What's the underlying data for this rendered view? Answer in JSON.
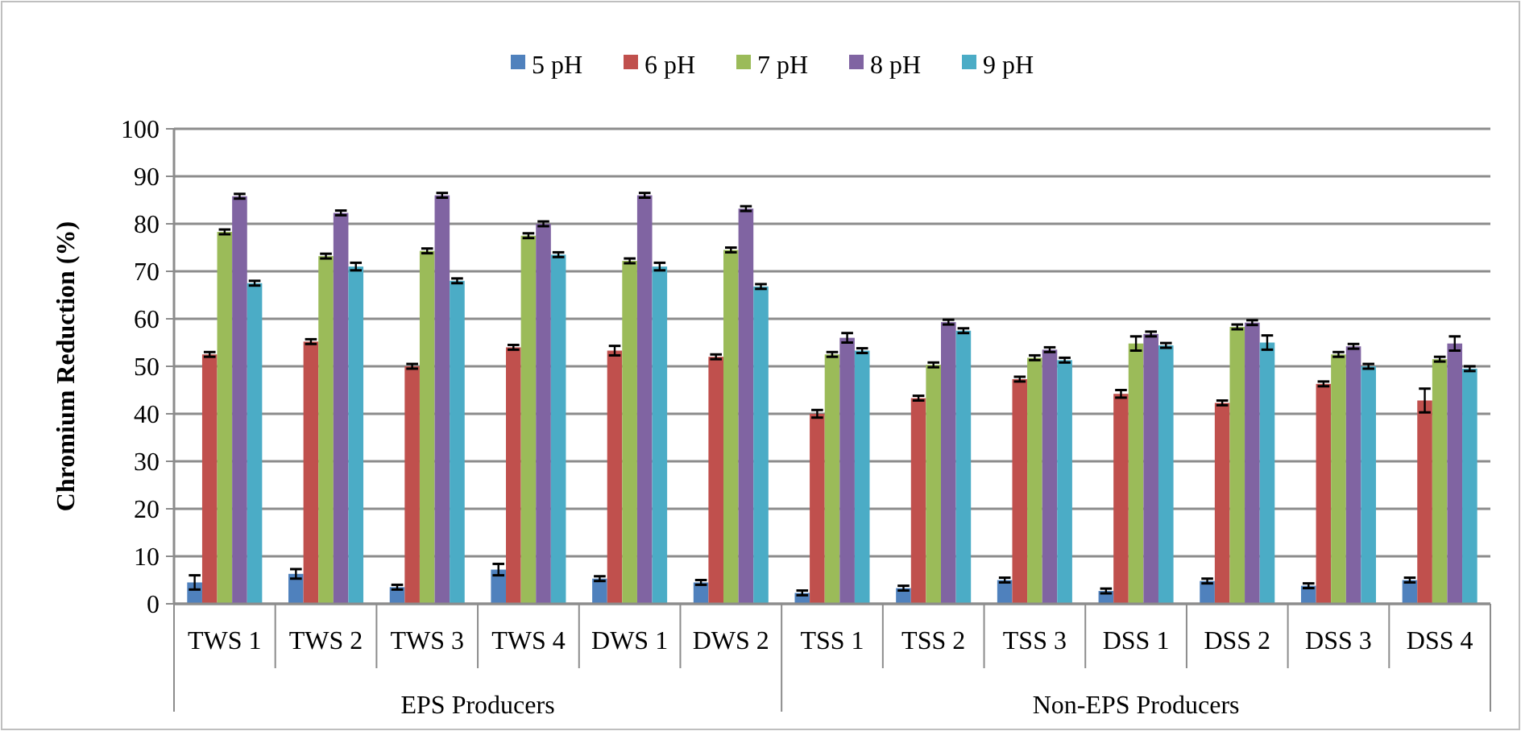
{
  "chart_data": {
    "type": "bar",
    "ylabel": "Chromium  Reduction (%)",
    "categories": [
      "TWS 1",
      "TWS 2",
      "TWS 3",
      "TWS 4",
      "DWS 1",
      "DWS 2",
      "TSS 1",
      "TSS 2",
      "TSS 3",
      "DSS 1",
      "DSS 2",
      "DSS 3",
      "DSS 4"
    ],
    "series": [
      {
        "name": "5 pH",
        "color": "#4f81bd",
        "values": [
          4.5,
          6.3,
          3.5,
          7.2,
          5.3,
          4.5,
          2.3,
          3.3,
          5,
          2.7,
          4.8,
          3.8,
          5
        ],
        "errors": [
          1.5,
          1,
          0.5,
          1.2,
          0.5,
          0.5,
          0.5,
          0.5,
          0.5,
          0.5,
          0.5,
          0.5,
          0.5
        ]
      },
      {
        "name": "6 pH",
        "color": "#c0504d",
        "values": [
          52.5,
          55.2,
          50,
          54,
          53.3,
          52,
          40,
          43.3,
          47.3,
          44.2,
          42.3,
          46.3,
          42.8
        ],
        "errors": [
          0.5,
          0.5,
          0.5,
          0.5,
          1,
          0.5,
          0.8,
          0.5,
          0.5,
          0.8,
          0.5,
          0.5,
          2.5
        ]
      },
      {
        "name": "7 pH",
        "color": "#9bbb59",
        "values": [
          78.3,
          73.2,
          74.3,
          77.5,
          72.2,
          74.5,
          52.5,
          50.3,
          51.8,
          54.8,
          58.3,
          52.5,
          51.5
        ],
        "errors": [
          0.5,
          0.5,
          0.5,
          0.5,
          0.5,
          0.5,
          0.5,
          0.5,
          0.5,
          1.5,
          0.5,
          0.5,
          0.5
        ]
      },
      {
        "name": "8 pH",
        "color": "#8064a2",
        "values": [
          85.8,
          82.3,
          86,
          80,
          86,
          83.2,
          56,
          59.3,
          53.5,
          56.8,
          59.2,
          54.2,
          54.8
        ],
        "errors": [
          0.5,
          0.5,
          0.5,
          0.5,
          0.5,
          0.5,
          1,
          0.5,
          0.5,
          0.5,
          0.5,
          0.5,
          1.5
        ]
      },
      {
        "name": "9 pH",
        "color": "#4bacc6",
        "values": [
          67.5,
          71,
          68,
          73.5,
          71,
          66.8,
          53.3,
          57.5,
          51.3,
          54.4,
          55,
          50,
          49.5
        ],
        "errors": [
          0.5,
          0.8,
          0.5,
          0.5,
          0.8,
          0.5,
          0.5,
          0.5,
          0.5,
          0.5,
          1.5,
          0.5,
          0.5
        ]
      }
    ],
    "ylim": [
      0,
      100
    ],
    "yticks": [
      0,
      10,
      20,
      30,
      40,
      50,
      60,
      70,
      80,
      90,
      100
    ],
    "grid": "y",
    "legend": "top",
    "annotations": [
      "EPS Producers",
      "Non-EPS Producers"
    ]
  }
}
